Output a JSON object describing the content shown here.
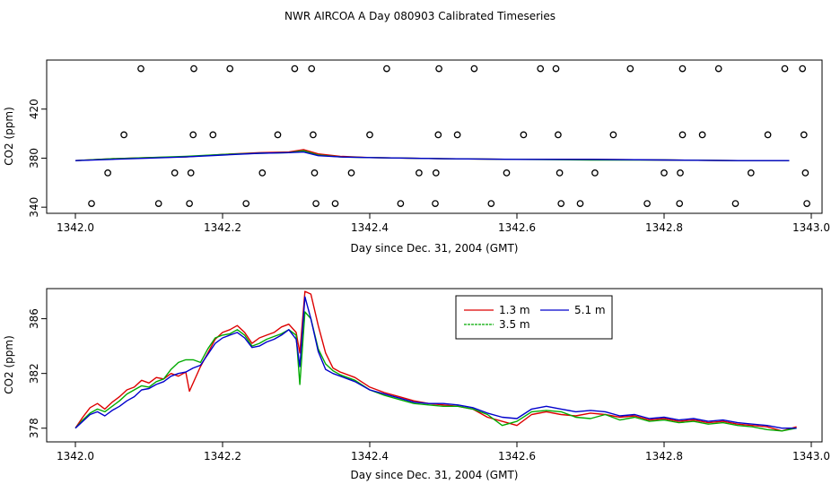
{
  "figure": {
    "title": "NWR AIRCOA A  Day 080903  Calibrated Timeseries"
  },
  "chart_data": [
    {
      "type": "scatter",
      "xlabel": "Day since Dec. 31, 2004 (GMT)",
      "ylabel": "CO2 (ppm)",
      "xlim": [
        1342.0,
        1343.0
      ],
      "ylim": [
        335,
        460
      ],
      "xticks": [
        "1342.0",
        "1342.2",
        "1342.4",
        "1342.6",
        "1342.8",
        "1343.0"
      ],
      "yticks": [
        "340",
        "380",
        "420"
      ],
      "ytick_values": [
        340,
        380,
        420
      ],
      "grid": false,
      "legend": "none",
      "points": [
        {
          "x": 1342.089,
          "y": 453
        },
        {
          "x": 1342.161,
          "y": 453
        },
        {
          "x": 1342.21,
          "y": 453
        },
        {
          "x": 1342.298,
          "y": 453
        },
        {
          "x": 1342.321,
          "y": 453
        },
        {
          "x": 1342.423,
          "y": 453
        },
        {
          "x": 1342.494,
          "y": 453
        },
        {
          "x": 1342.542,
          "y": 453
        },
        {
          "x": 1342.632,
          "y": 453
        },
        {
          "x": 1342.653,
          "y": 453
        },
        {
          "x": 1342.754,
          "y": 453
        },
        {
          "x": 1342.825,
          "y": 453
        },
        {
          "x": 1342.874,
          "y": 453
        },
        {
          "x": 1342.964,
          "y": 453
        },
        {
          "x": 1342.988,
          "y": 453
        },
        {
          "x": 1342.066,
          "y": 399
        },
        {
          "x": 1342.16,
          "y": 399
        },
        {
          "x": 1342.187,
          "y": 399
        },
        {
          "x": 1342.275,
          "y": 399
        },
        {
          "x": 1342.323,
          "y": 399
        },
        {
          "x": 1342.4,
          "y": 399
        },
        {
          "x": 1342.493,
          "y": 399
        },
        {
          "x": 1342.519,
          "y": 399
        },
        {
          "x": 1342.609,
          "y": 399
        },
        {
          "x": 1342.656,
          "y": 399
        },
        {
          "x": 1342.731,
          "y": 399
        },
        {
          "x": 1342.825,
          "y": 399
        },
        {
          "x": 1342.852,
          "y": 399
        },
        {
          "x": 1342.941,
          "y": 399
        },
        {
          "x": 1342.99,
          "y": 399
        },
        {
          "x": 1342.044,
          "y": 368
        },
        {
          "x": 1342.135,
          "y": 368
        },
        {
          "x": 1342.157,
          "y": 368
        },
        {
          "x": 1342.254,
          "y": 368
        },
        {
          "x": 1342.325,
          "y": 368
        },
        {
          "x": 1342.375,
          "y": 368
        },
        {
          "x": 1342.467,
          "y": 368
        },
        {
          "x": 1342.49,
          "y": 368
        },
        {
          "x": 1342.586,
          "y": 368
        },
        {
          "x": 1342.658,
          "y": 368
        },
        {
          "x": 1342.706,
          "y": 368
        },
        {
          "x": 1342.8,
          "y": 368
        },
        {
          "x": 1342.822,
          "y": 368
        },
        {
          "x": 1342.918,
          "y": 368
        },
        {
          "x": 1342.992,
          "y": 368
        },
        {
          "x": 1342.022,
          "y": 343
        },
        {
          "x": 1342.113,
          "y": 343
        },
        {
          "x": 1342.155,
          "y": 343
        },
        {
          "x": 1342.232,
          "y": 343
        },
        {
          "x": 1342.327,
          "y": 343
        },
        {
          "x": 1342.353,
          "y": 343
        },
        {
          "x": 1342.442,
          "y": 343
        },
        {
          "x": 1342.489,
          "y": 343
        },
        {
          "x": 1342.565,
          "y": 343
        },
        {
          "x": 1342.66,
          "y": 343
        },
        {
          "x": 1342.686,
          "y": 343
        },
        {
          "x": 1342.777,
          "y": 343
        },
        {
          "x": 1342.821,
          "y": 343
        },
        {
          "x": 1342.897,
          "y": 343
        },
        {
          "x": 1342.994,
          "y": 343
        }
      ],
      "lines": [
        {
          "color": "#dd0000",
          "x": [
            1342.0,
            1342.05,
            1342.1,
            1342.15,
            1342.2,
            1342.25,
            1342.29,
            1342.31,
            1342.33,
            1342.36,
            1342.4,
            1342.5,
            1342.6,
            1342.7,
            1342.8,
            1342.9,
            1342.97
          ],
          "y": [
            378,
            379.5,
            380.5,
            381,
            383,
            384.5,
            385,
            387,
            383.5,
            381.5,
            380.5,
            379.5,
            379,
            379,
            378.5,
            378,
            378
          ]
        },
        {
          "color": "#00aa00",
          "x": [
            1342.0,
            1342.05,
            1342.1,
            1342.15,
            1342.2,
            1342.25,
            1342.29,
            1342.31,
            1342.33,
            1342.36,
            1342.4,
            1342.5,
            1342.6,
            1342.7,
            1342.8,
            1342.9,
            1342.97
          ],
          "y": [
            378,
            379.5,
            380.5,
            381.5,
            383,
            384,
            384.5,
            386,
            382.5,
            381,
            380.5,
            379.5,
            379,
            378.5,
            378.5,
            378,
            378
          ]
        },
        {
          "color": "#0000cc",
          "x": [
            1342.0,
            1342.05,
            1342.1,
            1342.15,
            1342.2,
            1342.25,
            1342.29,
            1342.31,
            1342.33,
            1342.36,
            1342.4,
            1342.5,
            1342.6,
            1342.7,
            1342.8,
            1342.9,
            1342.97
          ],
          "y": [
            378,
            379,
            380,
            381,
            382.5,
            384,
            384.5,
            385,
            382,
            381,
            380.5,
            379.5,
            379,
            379,
            378.5,
            378,
            378
          ]
        }
      ]
    },
    {
      "type": "line",
      "xlabel": "Day since Dec. 31, 2004 (GMT)",
      "ylabel": "CO2 (ppm)",
      "xlim": [
        1342.0,
        1343.0
      ],
      "ylim": [
        377,
        388.2
      ],
      "xticks": [
        "1342.0",
        "1342.2",
        "1342.4",
        "1342.6",
        "1342.8",
        "1343.0"
      ],
      "yticks": [
        "378",
        "382",
        "386"
      ],
      "ytick_values": [
        378,
        382,
        386
      ],
      "grid": false,
      "legend": "top-center",
      "series": [
        {
          "name": "1.3 m",
          "color": "#dd0000",
          "x": [
            1342.0,
            1342.01,
            1342.02,
            1342.03,
            1342.04,
            1342.05,
            1342.06,
            1342.07,
            1342.08,
            1342.09,
            1342.1,
            1342.11,
            1342.12,
            1342.13,
            1342.14,
            1342.15,
            1342.155,
            1342.17,
            1342.18,
            1342.19,
            1342.2,
            1342.21,
            1342.22,
            1342.23,
            1342.24,
            1342.25,
            1342.26,
            1342.27,
            1342.28,
            1342.29,
            1342.3,
            1342.305,
            1342.312,
            1342.32,
            1342.33,
            1342.34,
            1342.35,
            1342.36,
            1342.38,
            1342.4,
            1342.42,
            1342.44,
            1342.46,
            1342.48,
            1342.5,
            1342.52,
            1342.54,
            1342.56,
            1342.58,
            1342.6,
            1342.62,
            1342.64,
            1342.66,
            1342.68,
            1342.7,
            1342.72,
            1342.74,
            1342.76,
            1342.78,
            1342.8,
            1342.82,
            1342.84,
            1342.86,
            1342.88,
            1342.9,
            1342.92,
            1342.94,
            1342.96,
            1342.98
          ],
          "y": [
            378.0,
            378.8,
            379.5,
            379.8,
            379.4,
            379.9,
            380.3,
            380.8,
            381.0,
            381.5,
            381.3,
            381.7,
            381.6,
            382.0,
            381.8,
            382.1,
            380.7,
            382.5,
            383.5,
            384.5,
            385.0,
            385.2,
            385.5,
            385.0,
            384.2,
            384.6,
            384.8,
            385.0,
            385.4,
            385.6,
            385.0,
            383.5,
            388.0,
            387.8,
            385.5,
            383.5,
            382.4,
            382.1,
            381.7,
            381.0,
            380.6,
            380.3,
            380.0,
            379.8,
            379.7,
            379.6,
            379.4,
            378.8,
            378.5,
            378.2,
            379.0,
            379.2,
            379.0,
            378.9,
            379.1,
            379.0,
            378.8,
            378.9,
            378.6,
            378.7,
            378.5,
            378.6,
            378.4,
            378.5,
            378.3,
            378.2,
            378.1,
            377.8,
            378.1
          ]
        },
        {
          "name": "3.5 m",
          "color": "#00aa00",
          "x": [
            1342.0,
            1342.01,
            1342.02,
            1342.03,
            1342.04,
            1342.05,
            1342.06,
            1342.07,
            1342.08,
            1342.09,
            1342.1,
            1342.11,
            1342.12,
            1342.13,
            1342.14,
            1342.15,
            1342.16,
            1342.17,
            1342.18,
            1342.19,
            1342.2,
            1342.21,
            1342.22,
            1342.23,
            1342.24,
            1342.25,
            1342.26,
            1342.27,
            1342.28,
            1342.29,
            1342.3,
            1342.305,
            1342.312,
            1342.32,
            1342.33,
            1342.34,
            1342.35,
            1342.36,
            1342.38,
            1342.4,
            1342.42,
            1342.44,
            1342.46,
            1342.48,
            1342.5,
            1342.52,
            1342.54,
            1342.56,
            1342.58,
            1342.6,
            1342.62,
            1342.64,
            1342.66,
            1342.68,
            1342.7,
            1342.72,
            1342.74,
            1342.76,
            1342.78,
            1342.8,
            1342.82,
            1342.84,
            1342.86,
            1342.88,
            1342.9,
            1342.92,
            1342.94,
            1342.96,
            1342.98
          ],
          "y": [
            378.0,
            378.6,
            379.1,
            379.4,
            379.2,
            379.6,
            380.0,
            380.5,
            380.8,
            381.1,
            381.0,
            381.4,
            381.6,
            382.3,
            382.8,
            383.0,
            383.0,
            382.8,
            383.8,
            384.6,
            384.8,
            384.9,
            385.2,
            384.8,
            384.0,
            384.2,
            384.5,
            384.7,
            384.9,
            385.2,
            384.8,
            381.2,
            386.5,
            386.0,
            383.8,
            382.7,
            382.2,
            381.9,
            381.5,
            380.8,
            380.4,
            380.1,
            379.8,
            379.7,
            379.6,
            379.6,
            379.4,
            379.0,
            378.2,
            378.5,
            379.2,
            379.3,
            379.2,
            378.8,
            378.7,
            379.0,
            378.6,
            378.8,
            378.5,
            378.6,
            378.4,
            378.5,
            378.3,
            378.4,
            378.2,
            378.1,
            377.9,
            377.8,
            378.0
          ]
        },
        {
          "name": "5.1 m",
          "color": "#0000cc",
          "x": [
            1342.0,
            1342.01,
            1342.02,
            1342.03,
            1342.04,
            1342.05,
            1342.06,
            1342.07,
            1342.08,
            1342.09,
            1342.1,
            1342.11,
            1342.12,
            1342.13,
            1342.14,
            1342.15,
            1342.16,
            1342.17,
            1342.18,
            1342.19,
            1342.2,
            1342.21,
            1342.22,
            1342.23,
            1342.24,
            1342.25,
            1342.26,
            1342.27,
            1342.28,
            1342.29,
            1342.3,
            1342.305,
            1342.312,
            1342.32,
            1342.33,
            1342.34,
            1342.35,
            1342.36,
            1342.38,
            1342.4,
            1342.42,
            1342.44,
            1342.46,
            1342.48,
            1342.5,
            1342.52,
            1342.54,
            1342.56,
            1342.58,
            1342.6,
            1342.62,
            1342.64,
            1342.66,
            1342.68,
            1342.7,
            1342.72,
            1342.74,
            1342.76,
            1342.78,
            1342.8,
            1342.82,
            1342.84,
            1342.86,
            1342.88,
            1342.9,
            1342.92,
            1342.94,
            1342.96,
            1342.98
          ],
          "y": [
            378.0,
            378.5,
            379.0,
            379.2,
            378.9,
            379.3,
            379.6,
            380.0,
            380.3,
            380.8,
            380.9,
            381.2,
            381.4,
            381.8,
            382.0,
            382.1,
            382.4,
            382.6,
            383.4,
            384.2,
            384.6,
            384.8,
            385.0,
            384.6,
            383.9,
            384.0,
            384.3,
            384.5,
            384.8,
            385.2,
            384.5,
            382.5,
            387.6,
            386.0,
            383.6,
            382.3,
            382.0,
            381.8,
            381.4,
            380.8,
            380.5,
            380.2,
            379.9,
            379.8,
            379.8,
            379.7,
            379.5,
            379.1,
            378.8,
            378.7,
            379.4,
            379.6,
            379.4,
            379.2,
            379.3,
            379.2,
            378.9,
            379.0,
            378.7,
            378.8,
            378.6,
            378.7,
            378.5,
            378.6,
            378.4,
            378.3,
            378.2,
            378.0,
            378.0
          ]
        }
      ]
    }
  ]
}
